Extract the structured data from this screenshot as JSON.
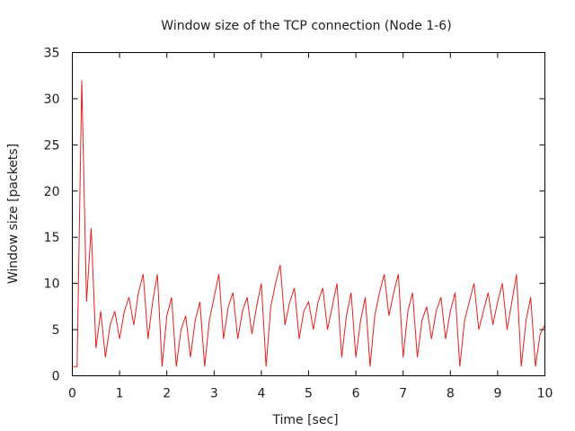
{
  "chart_data": {
    "type": "line",
    "title": "Window size of the TCP connection (Node 1-6)",
    "xlabel": "Time [sec]",
    "ylabel": "Window size [packets]",
    "xlim": [
      0,
      10
    ],
    "ylim": [
      0,
      35
    ],
    "xticks": [
      "0",
      "1",
      "2",
      "3",
      "4",
      "5",
      "6",
      "7",
      "8",
      "9",
      "10"
    ],
    "yticks": [
      "0",
      "5",
      "10",
      "15",
      "20",
      "25",
      "30",
      "35"
    ],
    "grid": false,
    "legend": "none",
    "series": [
      {
        "color": "#e0201c",
        "x": [
          0.0,
          0.1,
          0.2,
          0.3,
          0.4,
          0.5,
          0.6,
          0.7,
          0.8,
          0.9,
          1.0,
          1.1,
          1.2,
          1.3,
          1.4,
          1.5,
          1.6,
          1.7,
          1.8,
          1.9,
          2.0,
          2.1,
          2.2,
          2.3,
          2.4,
          2.5,
          2.6,
          2.7,
          2.8,
          2.9,
          3.0,
          3.1,
          3.2,
          3.3,
          3.4,
          3.5,
          3.6,
          3.7,
          3.8,
          3.9,
          4.0,
          4.1,
          4.2,
          4.3,
          4.4,
          4.5,
          4.6,
          4.7,
          4.8,
          4.9,
          5.0,
          5.1,
          5.2,
          5.3,
          5.4,
          5.5,
          5.6,
          5.7,
          5.8,
          5.9,
          6.0,
          6.1,
          6.2,
          6.3,
          6.4,
          6.5,
          6.6,
          6.7,
          6.8,
          6.9,
          7.0,
          7.1,
          7.2,
          7.3,
          7.4,
          7.5,
          7.6,
          7.7,
          7.8,
          7.9,
          8.0,
          8.1,
          8.2,
          8.3,
          8.4,
          8.5,
          8.6,
          8.7,
          8.8,
          8.9,
          9.0,
          9.1,
          9.2,
          9.3,
          9.4,
          9.5,
          9.6,
          9.7,
          9.8,
          9.9,
          10.0
        ],
        "y": [
          1,
          1,
          32,
          8,
          16,
          3,
          7,
          2,
          5.5,
          7,
          4,
          7,
          8.5,
          5.5,
          9,
          11,
          4,
          8,
          11,
          1,
          6.5,
          8.5,
          1,
          5,
          6.5,
          2,
          6,
          8,
          1,
          6,
          8.5,
          11,
          4,
          7.5,
          9,
          4,
          7,
          8.5,
          4.5,
          7.5,
          10,
          1,
          7.5,
          10,
          12,
          5.5,
          8,
          9.5,
          4,
          7,
          8,
          5,
          8,
          9.5,
          5,
          7.5,
          10,
          2,
          6.5,
          9,
          2,
          6,
          8.5,
          1,
          6.5,
          9,
          11,
          6.5,
          9,
          11,
          2,
          7,
          9,
          2,
          6,
          7.5,
          4,
          7,
          8.5,
          4,
          7,
          9,
          1,
          6,
          8,
          10,
          5,
          7,
          9,
          5.5,
          8,
          10,
          5,
          8,
          11,
          1,
          6,
          8.5,
          1,
          4.5,
          5.5
        ]
      }
    ]
  }
}
